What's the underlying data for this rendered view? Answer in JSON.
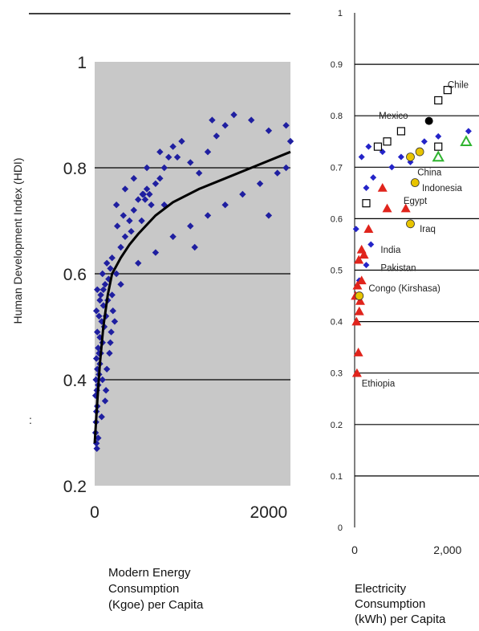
{
  "chart_data": [
    {
      "type": "scatter",
      "ylabel": "Human Development Index (HDI)",
      "xlabel_lines": [
        "Modern Energy",
        "Consumption",
        "(Kgoe) per Capita"
      ],
      "xlim": [
        0,
        2250
      ],
      "ylim": [
        0.2,
        1.0
      ],
      "xticks": [
        0,
        2000
      ],
      "yticks": [
        0.2,
        0.4,
        0.6,
        0.8,
        1.0
      ],
      "xtick_labels": [
        "0",
        "2000"
      ],
      "ytick_labels": [
        "0.2",
        "0.4",
        "0.6",
        "0.8",
        "1"
      ],
      "grid": true,
      "background": "#c8c8c8",
      "marker_color": "#1f1fa0",
      "trend_color": "#000000",
      "stray_mark": ":",
      "trend": [
        [
          0,
          0.28
        ],
        [
          30,
          0.36
        ],
        [
          60,
          0.43
        ],
        [
          100,
          0.5
        ],
        [
          150,
          0.56
        ],
        [
          200,
          0.6
        ],
        [
          300,
          0.63
        ],
        [
          400,
          0.655
        ],
        [
          500,
          0.675
        ],
        [
          700,
          0.71
        ],
        [
          900,
          0.735
        ],
        [
          1200,
          0.76
        ],
        [
          1500,
          0.78
        ],
        [
          1800,
          0.8
        ],
        [
          2250,
          0.83
        ]
      ],
      "points": [
        [
          20,
          0.28
        ],
        [
          10,
          0.3
        ],
        [
          25,
          0.27
        ],
        [
          15,
          0.32
        ],
        [
          20,
          0.34
        ],
        [
          30,
          0.35
        ],
        [
          10,
          0.37
        ],
        [
          25,
          0.38
        ],
        [
          40,
          0.39
        ],
        [
          15,
          0.4
        ],
        [
          50,
          0.41
        ],
        [
          30,
          0.42
        ],
        [
          60,
          0.43
        ],
        [
          20,
          0.44
        ],
        [
          70,
          0.45
        ],
        [
          40,
          0.46
        ],
        [
          90,
          0.47
        ],
        [
          60,
          0.48
        ],
        [
          30,
          0.49
        ],
        [
          110,
          0.5
        ],
        [
          80,
          0.51
        ],
        [
          50,
          0.52
        ],
        [
          130,
          0.52
        ],
        [
          20,
          0.53
        ],
        [
          100,
          0.54
        ],
        [
          150,
          0.55
        ],
        [
          70,
          0.56
        ],
        [
          30,
          0.57
        ],
        [
          120,
          0.58
        ],
        [
          160,
          0.59
        ],
        [
          90,
          0.6
        ],
        [
          180,
          0.61
        ],
        [
          140,
          0.62
        ],
        [
          200,
          0.63
        ],
        [
          250,
          0.6
        ],
        [
          300,
          0.65
        ],
        [
          350,
          0.67
        ],
        [
          400,
          0.7
        ],
        [
          450,
          0.72
        ],
        [
          500,
          0.74
        ],
        [
          550,
          0.75
        ],
        [
          600,
          0.76
        ],
        [
          650,
          0.73
        ],
        [
          700,
          0.77
        ],
        [
          750,
          0.78
        ],
        [
          800,
          0.8
        ],
        [
          850,
          0.82
        ],
        [
          900,
          0.84
        ],
        [
          1000,
          0.85
        ],
        [
          1100,
          0.81
        ],
        [
          1200,
          0.79
        ],
        [
          1300,
          0.83
        ],
        [
          1400,
          0.86
        ],
        [
          1500,
          0.88
        ],
        [
          1600,
          0.9
        ],
        [
          1800,
          0.89
        ],
        [
          2000,
          0.87
        ],
        [
          2200,
          0.88
        ],
        [
          2250,
          0.85
        ],
        [
          2100,
          0.79
        ],
        [
          1900,
          0.77
        ],
        [
          1700,
          0.75
        ],
        [
          1500,
          0.73
        ],
        [
          1300,
          0.71
        ],
        [
          1100,
          0.69
        ],
        [
          900,
          0.67
        ],
        [
          700,
          0.64
        ],
        [
          500,
          0.62
        ],
        [
          300,
          0.58
        ],
        [
          200,
          0.56
        ],
        [
          250,
          0.73
        ],
        [
          350,
          0.76
        ],
        [
          450,
          0.78
        ],
        [
          600,
          0.8
        ],
        [
          750,
          0.83
        ],
        [
          950,
          0.82
        ],
        [
          1150,
          0.65
        ],
        [
          2000,
          0.71
        ],
        [
          2200,
          0.8
        ],
        [
          1350,
          0.89
        ],
        [
          800,
          0.73
        ],
        [
          420,
          0.68
        ],
        [
          330,
          0.71
        ],
        [
          260,
          0.69
        ],
        [
          540,
          0.7
        ],
        [
          630,
          0.75
        ],
        [
          560,
          0.75
        ],
        [
          580,
          0.74
        ],
        [
          40,
          0.29
        ],
        [
          80,
          0.33
        ],
        [
          120,
          0.36
        ],
        [
          140,
          0.42
        ],
        [
          170,
          0.45
        ],
        [
          190,
          0.49
        ],
        [
          210,
          0.53
        ],
        [
          60,
          0.55
        ],
        [
          100,
          0.57
        ],
        [
          50,
          0.45
        ],
        [
          90,
          0.4
        ],
        [
          130,
          0.38
        ],
        [
          180,
          0.47
        ],
        [
          230,
          0.51
        ]
      ]
    },
    {
      "type": "scatter",
      "xlabel_lines": [
        "Electricity",
        "Consumption",
        "(kWh) per Capita"
      ],
      "xlim": [
        0,
        2500
      ],
      "ylim": [
        0,
        1.0
      ],
      "xticks": [
        0,
        2000
      ],
      "yticks": [
        0,
        0.1,
        0.2,
        0.3,
        0.4,
        0.5,
        0.6,
        0.7,
        0.8,
        0.9,
        1
      ],
      "xtick_labels": [
        "0",
        "2,000"
      ],
      "ytick_labels": [
        "0",
        "0.1",
        "0.2",
        "0.3",
        "0.4",
        "0.5",
        "0.6",
        "0.7",
        "0.8",
        "0.9",
        "1"
      ],
      "grid": true,
      "background": "#ffffff",
      "series": [
        {
          "marker": "diamond",
          "color": "#2424c8",
          "points": [
            [
              150,
              0.72
            ],
            [
              300,
              0.74
            ],
            [
              400,
              0.68
            ],
            [
              250,
              0.66
            ],
            [
              600,
              0.73
            ],
            [
              800,
              0.7
            ],
            [
              1000,
              0.72
            ],
            [
              1200,
              0.71
            ],
            [
              1500,
              0.75
            ],
            [
              2450,
              0.77
            ],
            [
              1800,
              0.76
            ],
            [
              350,
              0.55
            ],
            [
              250,
              0.51
            ],
            [
              30,
              0.58
            ],
            [
              100,
              0.48
            ]
          ]
        },
        {
          "marker": "triangle",
          "color": "#e0241c",
          "points": [
            [
              50,
              0.3
            ],
            [
              80,
              0.34
            ],
            [
              40,
              0.4
            ],
            [
              100,
              0.42
            ],
            [
              120,
              0.44
            ],
            [
              60,
              0.47
            ],
            [
              150,
              0.48
            ],
            [
              90,
              0.52
            ],
            [
              200,
              0.53
            ],
            [
              150,
              0.54
            ],
            [
              300,
              0.58
            ],
            [
              700,
              0.62
            ],
            [
              600,
              0.66
            ],
            [
              1100,
              0.62
            ],
            [
              20,
              0.45
            ]
          ]
        },
        {
          "marker": "circle",
          "color": "#e8c400",
          "points": [
            [
              100,
              0.45
            ],
            [
              1200,
              0.72
            ],
            [
              1400,
              0.73
            ],
            [
              1300,
              0.67
            ],
            [
              1200,
              0.59
            ]
          ]
        },
        {
          "marker": "square",
          "color": "#000000",
          "points": [
            [
              250,
              0.63
            ],
            [
              500,
              0.74
            ],
            [
              700,
              0.75
            ],
            [
              1000,
              0.77
            ],
            [
              1800,
              0.83
            ],
            [
              2000,
              0.85
            ],
            [
              1800,
              0.74
            ]
          ]
        },
        {
          "marker": "filled-circle",
          "color": "#000000",
          "points": [
            [
              1600,
              0.79
            ]
          ]
        },
        {
          "marker": "triangle-open",
          "color": "#2fb42f",
          "points": [
            [
              1800,
              0.72
            ],
            [
              2400,
              0.75
            ]
          ]
        }
      ],
      "annotations": [
        {
          "text": "Chile",
          "x": 2000,
          "y": 0.86
        },
        {
          "text": "Mexico",
          "x": 520,
          "y": 0.8
        },
        {
          "text": "China",
          "x": 1350,
          "y": 0.69
        },
        {
          "text": "Indonesia",
          "x": 1450,
          "y": 0.66
        },
        {
          "text": "Egypt",
          "x": 1050,
          "y": 0.635
        },
        {
          "text": "Iraq",
          "x": 1400,
          "y": 0.58
        },
        {
          "text": "India",
          "x": 560,
          "y": 0.54
        },
        {
          "text": "Pakistan",
          "x": 560,
          "y": 0.505
        },
        {
          "text": "Congo (Kirshasa)",
          "x": 300,
          "y": 0.465
        },
        {
          "text": "Ethiopia",
          "x": 150,
          "y": 0.28
        }
      ]
    }
  ]
}
